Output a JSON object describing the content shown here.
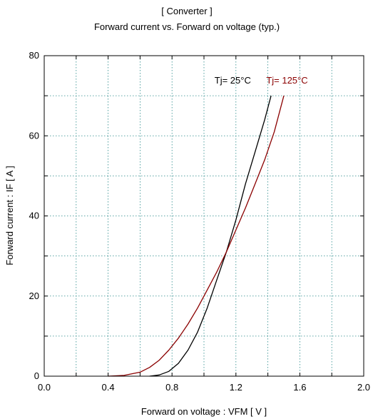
{
  "chart_data": {
    "type": "line",
    "title": "[ Converter ]",
    "subtitle": "Forward current  vs.  Forward on voltage  (typ.)",
    "xlabel": "Forward on voltage  :  VFM  [ V ]",
    "ylabel": "Forward current  :  IF  [ A ]",
    "xlim": [
      0.0,
      2.0
    ],
    "ylim": [
      0,
      80
    ],
    "x_ticks": [
      "0.0",
      "0.4",
      "0.8",
      "1.2",
      "1.6",
      "2.0"
    ],
    "y_ticks": [
      "0",
      "20",
      "40",
      "60",
      "80"
    ],
    "grid": true,
    "series": [
      {
        "name": "Tj= 25°C",
        "color": "#000000",
        "x": [
          0.66,
          0.72,
          0.78,
          0.84,
          0.9,
          0.96,
          1.02,
          1.08,
          1.14,
          1.2,
          1.26,
          1.32,
          1.38,
          1.42
        ],
        "y": [
          0,
          0.3,
          1.2,
          3.2,
          6.5,
          11,
          17,
          24,
          31,
          39,
          48,
          56,
          64,
          70
        ]
      },
      {
        "name": "Tj= 125°C",
        "color": "#8b0000",
        "x": [
          0.4,
          0.5,
          0.6,
          0.66,
          0.72,
          0.78,
          0.84,
          0.9,
          0.96,
          1.02,
          1.08,
          1.14,
          1.2,
          1.26,
          1.32,
          1.38,
          1.44,
          1.5
        ],
        "y": [
          0,
          0.2,
          1.0,
          2.2,
          4.0,
          6.5,
          9.5,
          13,
          17,
          21.5,
          26,
          31,
          36.5,
          42,
          48,
          54,
          61,
          70
        ]
      }
    ],
    "annotations": [
      {
        "text": "Tj= 25°C",
        "color": "#000000",
        "x": 1.18,
        "y": 72
      },
      {
        "text": "Tj= 125°C",
        "color": "#8b0000",
        "x": 1.52,
        "y": 72
      }
    ]
  }
}
